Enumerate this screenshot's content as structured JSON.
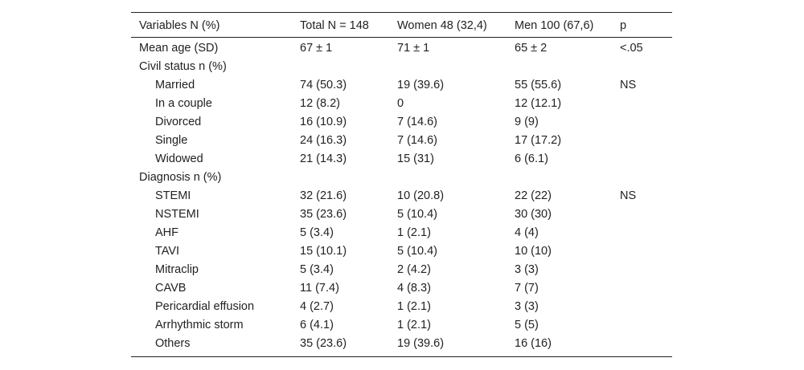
{
  "table": {
    "header": [
      "Variables N (%)",
      "Total N = 148",
      "Women 48 (32,4)",
      "Men 100 (67,6)",
      "p"
    ],
    "rows": [
      [
        "Mean age (SD)",
        "67 ± 1",
        "71 ± 1",
        "65 ± 2",
        "<.05"
      ]
    ],
    "groups": [
      {
        "title": "Civil status n (%)",
        "rows": [
          [
            "Married",
            "74 (50.3)",
            "19 (39.6)",
            "55 (55.6)",
            "NS"
          ],
          [
            "In a couple",
            "12 (8.2)",
            "0",
            "12 (12.1)"
          ],
          [
            "Divorced",
            "16 (10.9)",
            "7 (14.6)",
            "9 (9)"
          ],
          [
            "Single",
            "24 (16.3)",
            "7 (14.6)",
            "17 (17.2)"
          ],
          [
            "Widowed",
            "21 (14.3)",
            "15 (31)",
            "6 (6.1)"
          ]
        ]
      },
      {
        "title": "Diagnosis n (%)",
        "rows": [
          [
            "STEMI",
            "32 (21.6)",
            "10 (20.8)",
            "22 (22)",
            "NS"
          ],
          [
            "NSTEMI",
            "35 (23.6)",
            "5 (10.4)",
            "30 (30)"
          ],
          [
            "AHF",
            "5 (3.4)",
            "1 (2.1)",
            "4 (4)"
          ],
          [
            "TAVI",
            "15 (10.1)",
            "5 (10.4)",
            "10 (10)"
          ],
          [
            "Mitraclip",
            "5 (3.4)",
            "2 (4.2)",
            "3 (3)"
          ],
          [
            "CAVB",
            "11 (7.4)",
            "4 (8.3)",
            "7 (7)"
          ],
          [
            "Pericardial effusion",
            "4 (2.7)",
            "1 (2.1)",
            "3 (3)"
          ],
          [
            "Arrhythmic storm",
            "6 (4.1)",
            "1 (2.1)",
            "5 (5)"
          ],
          [
            "Others",
            "35 (23.6)",
            "19 (39.6)",
            "16 (16)"
          ]
        ]
      }
    ]
  }
}
